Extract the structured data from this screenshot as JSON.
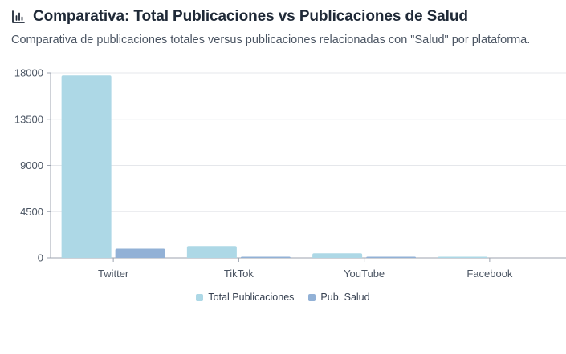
{
  "header": {
    "title": "Comparativa: Total Publicaciones vs Publicaciones de Salud",
    "subtitle": "Comparativa de publicaciones totales versus publicaciones relacionadas con \"Salud\" por plataforma.",
    "icon": "bar-chart-icon"
  },
  "colors": {
    "total": "#add8e6",
    "salud": "#92b1d6",
    "grid": "#e5e7eb",
    "axis": "#9ca3af",
    "icon": "#1f2937"
  },
  "chart_data": {
    "type": "bar",
    "title": "",
    "xlabel": "",
    "ylabel": "",
    "categories": [
      "Twitter",
      "TikTok",
      "YouTube",
      "Facebook"
    ],
    "series": [
      {
        "name": "Total Publicaciones",
        "values": [
          17750,
          1150,
          450,
          60
        ]
      },
      {
        "name": "Pub. Salud",
        "values": [
          900,
          70,
          40,
          0
        ]
      }
    ],
    "ylim": [
      0,
      18000
    ],
    "yticks": [
      "0",
      "4500",
      "9000",
      "13500",
      "18000"
    ],
    "grid": true,
    "legend": "bottom-center"
  }
}
